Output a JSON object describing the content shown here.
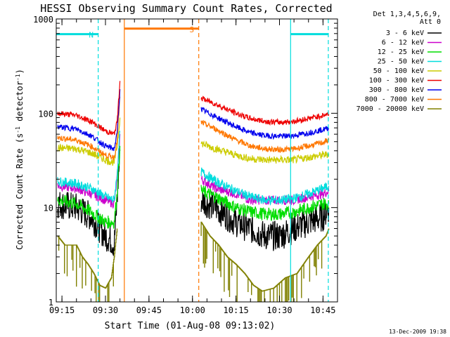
{
  "chart_data": {
    "type": "line",
    "title": "HESSI Observing Summary Count Rates, Corrected",
    "xlabel": "Start Time (01-Aug-08 09:13:02)",
    "ylabel": "Corrected Count Rate (s-1 detector-1)",
    "ylabel_parts": {
      "base": "Corrected Count Rate (s",
      "sup1": "-1",
      "mid": " detector",
      "sup2": "-1",
      "end": ")"
    },
    "yscale": "log",
    "ylim": [
      1,
      1000
    ],
    "xlim": [
      "09:13:02",
      "10:50:00"
    ],
    "x_ticks": [
      "09:15",
      "09:30",
      "09:45",
      "10:00",
      "10:15",
      "10:30",
      "10:45"
    ],
    "y_ticks": [
      "1",
      "10",
      "100",
      "1000"
    ],
    "legend_header": [
      "Det 1,3,4,5,6,9,",
      "Att 0"
    ],
    "legend_position": "top-right, outside plot",
    "footer_date": "13-Dec-2009 19:38",
    "series": [
      {
        "name": "3 - 6 keV",
        "color": "#000000",
        "noise": 0.16,
        "points": [
          [
            "09:13:30",
            11
          ],
          [
            "09:20",
            10
          ],
          [
            "09:25",
            8
          ],
          [
            "09:30",
            5
          ],
          [
            "09:32",
            4.5
          ],
          [
            "09:33",
            4
          ],
          [
            "09:34",
            12
          ],
          [
            "09:35",
            40
          ],
          null,
          [
            "10:03",
            12
          ],
          [
            "10:08",
            10
          ],
          [
            "10:15",
            7
          ],
          [
            "10:20",
            6
          ],
          [
            "10:25",
            5
          ],
          [
            "10:30",
            5
          ],
          [
            "10:35",
            6
          ],
          [
            "10:40",
            7
          ],
          [
            "10:45",
            8
          ],
          [
            "10:47",
            10
          ]
        ]
      },
      {
        "name": "6 - 12 keV",
        "color": "#cc00cc",
        "noise": 0.05,
        "points": [
          [
            "09:13:30",
            17
          ],
          [
            "09:20",
            16
          ],
          [
            "09:25",
            14
          ],
          [
            "09:30",
            12
          ],
          [
            "09:33",
            11
          ],
          [
            "09:34",
            20
          ],
          [
            "09:35",
            60
          ],
          null,
          [
            "10:03",
            20
          ],
          [
            "10:08",
            16
          ],
          [
            "10:15",
            14
          ],
          [
            "10:20",
            12
          ],
          [
            "10:25",
            12
          ],
          [
            "10:30",
            12
          ],
          [
            "10:35",
            12
          ],
          [
            "10:40",
            13
          ],
          [
            "10:45",
            14
          ],
          [
            "10:47",
            15
          ]
        ]
      },
      {
        "name": "12 - 25 keV",
        "color": "#00dd00",
        "noise": 0.07,
        "points": [
          [
            "09:13:30",
            12
          ],
          [
            "09:20",
            11
          ],
          [
            "09:25",
            9
          ],
          [
            "09:30",
            7
          ],
          [
            "09:33",
            7
          ],
          [
            "09:34",
            14
          ],
          [
            "09:35",
            45
          ],
          null,
          [
            "10:03",
            15
          ],
          [
            "10:08",
            13
          ],
          [
            "10:15",
            10
          ],
          [
            "10:20",
            9
          ],
          [
            "10:25",
            8.5
          ],
          [
            "10:30",
            8.5
          ],
          [
            "10:35",
            9
          ],
          [
            "10:40",
            10
          ],
          [
            "10:45",
            11
          ],
          [
            "10:47",
            11
          ]
        ]
      },
      {
        "name": "25 - 50 keV",
        "color": "#00dddd",
        "noise": 0.05,
        "points": [
          [
            "09:13:30",
            19
          ],
          [
            "09:20",
            18
          ],
          [
            "09:25",
            16
          ],
          [
            "09:30",
            13
          ],
          [
            "09:33",
            12
          ],
          [
            "09:34",
            22
          ],
          [
            "09:35",
            65
          ],
          null,
          [
            "10:03",
            24
          ],
          [
            "10:08",
            19
          ],
          [
            "10:15",
            15
          ],
          [
            "10:20",
            13
          ],
          [
            "10:25",
            12
          ],
          [
            "10:30",
            12
          ],
          [
            "10:35",
            12.5
          ],
          [
            "10:40",
            14
          ],
          [
            "10:45",
            16
          ],
          [
            "10:47",
            17
          ]
        ]
      },
      {
        "name": "50 - 100 keV",
        "color": "#cccc00",
        "noise": 0.04,
        "points": [
          [
            "09:13:30",
            43
          ],
          [
            "09:20",
            42
          ],
          [
            "09:25",
            38
          ],
          [
            "09:30",
            32
          ],
          [
            "09:33",
            30
          ],
          [
            "09:34",
            45
          ],
          [
            "09:35",
            90
          ],
          null,
          [
            "10:03",
            48
          ],
          [
            "10:08",
            42
          ],
          [
            "10:15",
            36
          ],
          [
            "10:20",
            33
          ],
          [
            "10:25",
            32
          ],
          [
            "10:30",
            32
          ],
          [
            "10:35",
            32
          ],
          [
            "10:40",
            34
          ],
          [
            "10:45",
            36
          ],
          [
            "10:47",
            37
          ]
        ]
      },
      {
        "name": "100 - 300 keV",
        "color": "#ee0000",
        "noise": 0.03,
        "points": [
          [
            "09:13:30",
            100
          ],
          [
            "09:20",
            95
          ],
          [
            "09:25",
            82
          ],
          [
            "09:30",
            65
          ],
          [
            "09:33",
            60
          ],
          [
            "09:34",
            80
          ],
          [
            "09:35",
            220
          ],
          null,
          [
            "10:03",
            145
          ],
          [
            "10:08",
            125
          ],
          [
            "10:15",
            100
          ],
          [
            "10:20",
            88
          ],
          [
            "10:25",
            82
          ],
          [
            "10:30",
            80
          ],
          [
            "10:35",
            82
          ],
          [
            "10:40",
            88
          ],
          [
            "10:45",
            95
          ],
          [
            "10:47",
            98
          ]
        ]
      },
      {
        "name": "300 - 800 keV",
        "color": "#0000ee",
        "noise": 0.03,
        "points": [
          [
            "09:13:30",
            72
          ],
          [
            "09:20",
            68
          ],
          [
            "09:25",
            58
          ],
          [
            "09:30",
            45
          ],
          [
            "09:33",
            42
          ],
          [
            "09:34",
            60
          ],
          [
            "09:35",
            180
          ],
          null,
          [
            "10:03",
            110
          ],
          [
            "10:08",
            92
          ],
          [
            "10:15",
            72
          ],
          [
            "10:20",
            62
          ],
          [
            "10:25",
            58
          ],
          [
            "10:30",
            57
          ],
          [
            "10:35",
            58
          ],
          [
            "10:40",
            62
          ],
          [
            "10:45",
            67
          ],
          [
            "10:47",
            70
          ]
        ]
      },
      {
        "name": "800 - 7000 keV",
        "color": "#ff7700",
        "noise": 0.03,
        "points": [
          [
            "09:13:30",
            55
          ],
          [
            "09:20",
            52
          ],
          [
            "09:25",
            45
          ],
          [
            "09:30",
            36
          ],
          [
            "09:33",
            34
          ],
          [
            "09:34",
            50
          ],
          [
            "09:35",
            150
          ],
          null,
          [
            "10:03",
            80
          ],
          [
            "10:08",
            68
          ],
          [
            "10:15",
            52
          ],
          [
            "10:20",
            45
          ],
          [
            "10:25",
            42
          ],
          [
            "10:30",
            41
          ],
          [
            "10:35",
            42
          ],
          [
            "10:40",
            45
          ],
          [
            "10:45",
            49
          ],
          [
            "10:47",
            52
          ]
        ]
      },
      {
        "name": "7000 - 20000 keV",
        "color": "#808000",
        "noise": 0.0,
        "step": true,
        "points": [
          [
            "09:13:30",
            5
          ],
          [
            "09:16",
            4
          ],
          [
            "09:20",
            4
          ],
          [
            "09:22",
            3
          ],
          [
            "09:24",
            2.5
          ],
          [
            "09:26",
            2
          ],
          [
            "09:28",
            1.5
          ],
          [
            "09:30",
            1.4
          ],
          [
            "09:32",
            1.8
          ],
          [
            "09:33",
            3
          ],
          [
            "09:34",
            6
          ],
          null,
          [
            "10:03",
            7
          ],
          [
            "10:06",
            5
          ],
          [
            "10:09",
            4
          ],
          [
            "10:12",
            3
          ],
          [
            "10:15",
            2.5
          ],
          [
            "10:18",
            2
          ],
          [
            "10:21",
            1.5
          ],
          [
            "10:24",
            1.3
          ],
          [
            "10:28",
            1.4
          ],
          [
            "10:32",
            1.8
          ],
          [
            "10:36",
            2
          ],
          [
            "10:40",
            3
          ],
          [
            "10:43",
            4
          ],
          [
            "10:46",
            5
          ],
          [
            "10:47",
            6
          ]
        ]
      }
    ],
    "flags": [
      {
        "label": "N",
        "color": "#00dddd",
        "start": "09:13:02",
        "end": "09:27:30",
        "level": 690
      },
      {
        "label": "S",
        "color": "#ff7700",
        "start": "09:36:30",
        "end": "10:02:10",
        "level": 790
      },
      {
        "label": "",
        "color": "#00dddd",
        "start": "10:33:50",
        "end": "10:46:50",
        "level": 690
      }
    ],
    "vlines": [
      {
        "time": "09:27:30",
        "color": "#00dddd",
        "style": "dashed"
      },
      {
        "time": "09:36:30",
        "color": "#ff7700",
        "style": "solid"
      },
      {
        "time": "10:02:10",
        "color": "#ff7700",
        "style": "dashed"
      },
      {
        "time": "10:33:50",
        "color": "#00dddd",
        "style": "solid"
      },
      {
        "time": "10:46:50",
        "color": "#00dddd",
        "style": "dashed"
      }
    ]
  }
}
